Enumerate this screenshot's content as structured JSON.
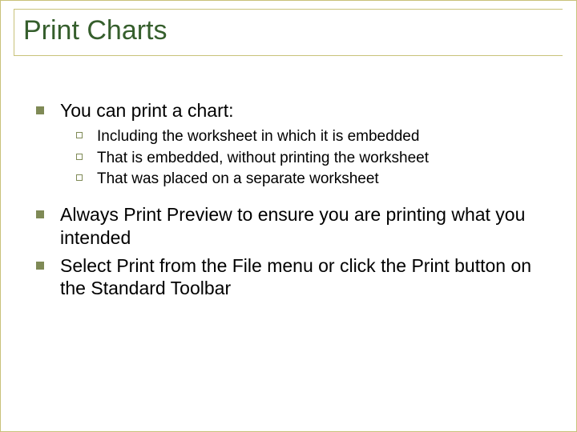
{
  "slide": {
    "title": "Print Charts",
    "title_color": "#355e2c",
    "title_fontsize": 34,
    "rule_color": "#c9c27a",
    "level1_bullet_color": "#7f8a56",
    "level2_bullet_border": "#7f8a56",
    "body_fontsize_l1": 23,
    "body_fontsize_l2": 19,
    "text_color": "#000000",
    "background_color": "#ffffff",
    "bullets": [
      {
        "text": "You can print a chart:",
        "sub": [
          "Including the worksheet in which it is embedded",
          "That is embedded, without printing the worksheet",
          "That was placed on a separate worksheet"
        ]
      },
      {
        "text": "Always Print Preview to ensure you are printing what you intended",
        "sub": []
      },
      {
        "text": "Select Print from the File menu or click the Print button on the Standard Toolbar",
        "sub": []
      }
    ]
  }
}
